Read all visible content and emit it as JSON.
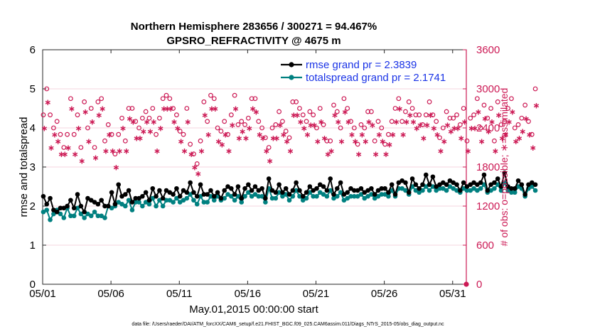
{
  "chart_data": {
    "type": "line",
    "title_line1": "Northern Hemisphere 283656 / 300271 = 94.467%",
    "title_line2": "GPSRO_REFRACTIVITY @ 4675 m",
    "xlabel": "May.01,2015 00:00:00 start",
    "ylabel_left": "rmse and totalspread",
    "ylabel_right": "# of obs: o=possible; ∗=assimilated",
    "footnote": "data file: /Users/raeder/DAI/ATM_forcXX/CAM6_setup/f.e21.FHIST_BGC.f09_025.CAM6assim.011/Diags_NTrS_2015-05/obs_diag_output.nc",
    "xlim": [
      0,
      31
    ],
    "ylim_left": [
      0,
      6
    ],
    "ylim_right": [
      0,
      3600
    ],
    "x_ticks": [
      0,
      5,
      10,
      15,
      20,
      25,
      30
    ],
    "x_tick_labels": [
      "05/01",
      "05/06",
      "05/11",
      "05/16",
      "05/21",
      "05/26",
      "05/31"
    ],
    "y_ticks_left": [
      "0",
      "1",
      "2",
      "3",
      "4",
      "5",
      "6"
    ],
    "y_ticks_right": [
      "0",
      "600",
      "1200",
      "1800",
      "2400",
      "3000",
      "3600"
    ],
    "legend": [
      {
        "name": "rmse",
        "label": "rmse grand pr = 2.3839",
        "color": "#000000"
      },
      {
        "name": "totalspread",
        "label": "totalspread grand pr = 2.1741",
        "color": "#008080"
      }
    ],
    "colors": {
      "rmse": "#000000",
      "spread": "#008080",
      "obs": "#cc1a55"
    },
    "x_step": 0.25,
    "series": [
      {
        "name": "rmse",
        "values": [
          2.25,
          2.05,
          2.2,
          1.9,
          1.85,
          1.95,
          1.95,
          2.0,
          2.15,
          1.95,
          2.3,
          2.0,
          1.85,
          2.2,
          2.15,
          2.1,
          2.05,
          2.15,
          2.0,
          2.0,
          2.35,
          2.05,
          2.55,
          2.25,
          2.3,
          2.4,
          2.1,
          2.2,
          2.2,
          2.25,
          2.35,
          2.15,
          2.45,
          2.25,
          2.4,
          2.2,
          2.4,
          2.35,
          2.3,
          2.45,
          2.25,
          2.4,
          2.35,
          2.6,
          2.35,
          2.25,
          2.55,
          2.3,
          2.3,
          2.4,
          2.25,
          2.35,
          2.2,
          2.4,
          2.5,
          2.45,
          2.3,
          2.5,
          2.2,
          2.45,
          2.55,
          2.4,
          2.5,
          2.4,
          2.45,
          2.2,
          2.7,
          2.4,
          2.35,
          2.55,
          2.35,
          2.45,
          2.3,
          2.4,
          2.6,
          2.4,
          2.25,
          2.35,
          2.5,
          2.4,
          2.45,
          2.55,
          2.5,
          2.4,
          2.7,
          2.3,
          2.45,
          2.6,
          2.3,
          2.35,
          2.45,
          2.4,
          2.4,
          2.45,
          2.35,
          2.4,
          2.45,
          2.3,
          2.4,
          2.45,
          2.45,
          2.35,
          2.55,
          2.3,
          2.6,
          2.65,
          2.6,
          2.35,
          2.7,
          2.55,
          2.45,
          2.55,
          2.8,
          2.55,
          2.75,
          2.5,
          2.55,
          2.6,
          2.55,
          2.65,
          2.6,
          2.55,
          2.4,
          2.6,
          2.5,
          2.55,
          2.6,
          2.55,
          2.6,
          2.8,
          2.4,
          2.55,
          2.6,
          2.7,
          2.5,
          2.85,
          2.5,
          2.45,
          2.45,
          2.65,
          2.55,
          2.3,
          2.55,
          2.6,
          2.55
        ]
      },
      {
        "name": "totalspread",
        "values": [
          1.85,
          1.9,
          1.65,
          1.8,
          1.9,
          1.8,
          1.7,
          1.95,
          1.75,
          1.75,
          1.95,
          1.8,
          1.7,
          1.8,
          1.75,
          1.85,
          1.75,
          1.75,
          1.7,
          2.0,
          1.95,
          2.0,
          2.1,
          2.05,
          2.0,
          2.15,
          1.9,
          2.1,
          2.1,
          2.0,
          2.1,
          2.05,
          2.2,
          2.0,
          2.15,
          2.0,
          2.15,
          2.15,
          2.1,
          2.2,
          2.1,
          2.15,
          2.2,
          2.3,
          2.15,
          2.05,
          2.25,
          2.1,
          2.1,
          2.25,
          2.15,
          2.25,
          2.15,
          2.2,
          2.3,
          2.25,
          2.15,
          2.25,
          2.1,
          2.25,
          2.35,
          2.25,
          2.3,
          2.25,
          2.25,
          2.1,
          2.45,
          2.2,
          2.2,
          2.35,
          2.25,
          2.3,
          2.15,
          2.25,
          2.4,
          2.25,
          2.15,
          2.2,
          2.35,
          2.25,
          2.25,
          2.35,
          2.3,
          2.25,
          2.4,
          2.2,
          2.25,
          2.35,
          2.15,
          2.2,
          2.25,
          2.25,
          2.25,
          2.3,
          2.2,
          2.25,
          2.3,
          2.2,
          2.25,
          2.3,
          2.3,
          2.25,
          2.4,
          2.25,
          2.45,
          2.45,
          2.4,
          2.3,
          2.5,
          2.4,
          2.35,
          2.4,
          2.5,
          2.4,
          2.5,
          2.4,
          2.45,
          2.45,
          2.4,
          2.5,
          2.45,
          2.4,
          2.35,
          2.45,
          2.4,
          2.4,
          2.45,
          2.4,
          2.45,
          2.55,
          2.35,
          2.4,
          2.45,
          2.55,
          2.4,
          2.6,
          2.4,
          2.35,
          2.35,
          2.5,
          2.45,
          2.25,
          2.45,
          2.5,
          2.4
        ]
      },
      {
        "name": "obs_possible",
        "values": [
          2600,
          3000,
          2600,
          2400,
          2500,
          2300,
          2100,
          2300,
          2850,
          2300,
          2600,
          2100,
          2800,
          2400,
          2700,
          2100,
          2800,
          2850,
          2200,
          2450,
          2300,
          2000,
          2300,
          2550,
          2200,
          2700,
          2700,
          2500,
          2400,
          2550,
          2650,
          2550,
          2700,
          2300,
          2550,
          2850,
          2900,
          2850,
          2700,
          2600,
          2350,
          2300,
          2700,
          2150,
          2000,
          1850,
          2200,
          2800,
          2500,
          2900,
          2850,
          2400,
          2350,
          2500,
          2300,
          2600,
          2900,
          2450,
          2500,
          2450,
          2550,
          2850,
          2850,
          2500,
          2400,
          2250,
          2100,
          2400,
          2450,
          2650,
          2500,
          2350,
          2250,
          2800,
          2800,
          2700,
          2600,
          2500,
          2650,
          2600,
          2400,
          2700,
          2450,
          2200,
          2200,
          2750,
          2650,
          2400,
          2850,
          2700,
          2500,
          2400,
          2150,
          2450,
          2400,
          2650,
          2650,
          2200,
          2500,
          2400,
          2150,
          2300,
          2500,
          2700,
          2850,
          2500,
          2650,
          2800,
          2700,
          2600,
          2600,
          2450,
          2600,
          2800,
          2600,
          2500,
          2250,
          2400,
          2650,
          2550,
          2550,
          2600,
          2450,
          2700,
          2200,
          2550,
          2600,
          2850,
          2400,
          2750,
          2550,
          2700,
          2200,
          2800,
          2450,
          2500,
          2700,
          2850,
          2400,
          2450,
          2550,
          2750,
          2500,
          2300,
          3000
        ]
      },
      {
        "name": "obs_assimilated",
        "values": [
          2400,
          2800,
          2100,
          2300,
          2200,
          2000,
          2000,
          2100,
          2700,
          2000,
          2400,
          1900,
          2650,
          2200,
          2500,
          1950,
          2600,
          2700,
          2050,
          2300,
          2050,
          1800,
          2050,
          2400,
          2050,
          2550,
          2500,
          2250,
          2250,
          2350,
          2500,
          2350,
          2500,
          2050,
          2400,
          2700,
          2700,
          2700,
          2500,
          2400,
          2200,
          2050,
          2500,
          2000,
          1800,
          1700,
          2050,
          2600,
          2300,
          2700,
          2700,
          2200,
          2150,
          2300,
          2050,
          2450,
          2700,
          2250,
          2350,
          2250,
          2400,
          2700,
          2650,
          2300,
          2250,
          2050,
          1900,
          2250,
          2250,
          2450,
          2300,
          2200,
          2050,
          2600,
          2600,
          2500,
          2400,
          2300,
          2450,
          2450,
          2200,
          2500,
          2250,
          2000,
          2050,
          2600,
          2500,
          2200,
          2650,
          2500,
          2300,
          2200,
          2000,
          2300,
          2200,
          2500,
          2450,
          2000,
          2300,
          2200,
          2000,
          2150,
          2300,
          2500,
          2700,
          2300,
          2500,
          2600,
          2500,
          2400,
          2450,
          2250,
          2450,
          2600,
          2400,
          2300,
          2050,
          2200,
          2450,
          2350,
          2400,
          2400,
          2250,
          2500,
          2050,
          2400,
          2400,
          2650,
          2200,
          2550,
          2350,
          2500,
          2050,
          2600,
          2250,
          2300,
          2500,
          2650,
          2200,
          2250,
          2350,
          2550,
          2300,
          2100,
          2750
        ]
      }
    ]
  }
}
